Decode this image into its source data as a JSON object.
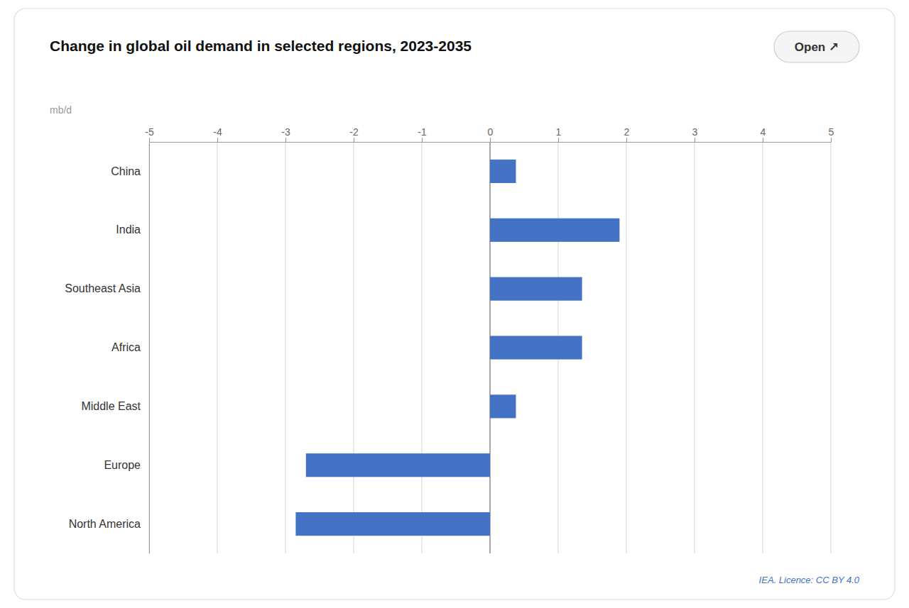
{
  "chart_data": {
    "type": "bar",
    "orientation": "horizontal",
    "title": "Change in global oil demand in selected regions, 2023-2035",
    "xlabel": "mb/d",
    "annotations": [
      "Open ↗",
      "IEA. Licence: CC BY 4.0"
    ],
    "categories": [
      "China",
      "India",
      "Southeast Asia",
      "Africa",
      "Middle East",
      "Europe",
      "North America"
    ],
    "values": [
      0.38,
      1.9,
      1.35,
      1.35,
      0.38,
      -2.7,
      -2.85
    ],
    "color": "#4472C4",
    "xlim": [
      -5,
      5
    ],
    "xticks": [
      -5,
      -4,
      -3,
      -2,
      -1,
      0,
      1,
      2,
      3,
      4,
      5
    ],
    "grid": true
  }
}
